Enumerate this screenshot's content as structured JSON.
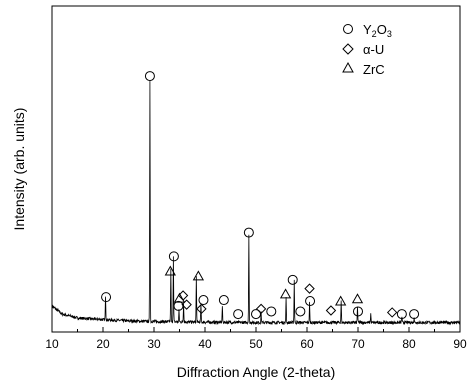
{
  "chart_data": {
    "type": "line",
    "title": "",
    "xlabel": "Diffraction Angle (2-theta)",
    "ylabel": "Intensity (arb. units)",
    "xlim": [
      10,
      90
    ],
    "ylim": [
      0,
      100
    ],
    "x_ticks": [
      "10",
      "20",
      "30",
      "40",
      "50",
      "60",
      "70",
      "80",
      "90"
    ],
    "grid": false,
    "legend_position": "top-right",
    "legend": [
      {
        "marker": "circle",
        "label_main": "Y",
        "label_sub1": "2",
        "label_mid": "O",
        "label_sub2": "3"
      },
      {
        "marker": "diamond",
        "label": "α-U"
      },
      {
        "marker": "triangle",
        "label": "ZrC"
      }
    ],
    "series": [
      {
        "baseline": [
          [
            10,
            8.0
          ],
          [
            12,
            5.5
          ],
          [
            15,
            4.3
          ],
          [
            20,
            3.8
          ],
          [
            25,
            3.4
          ],
          [
            30,
            3.2
          ],
          [
            40,
            3.0
          ],
          [
            50,
            2.9
          ],
          [
            60,
            2.9
          ],
          [
            70,
            2.9
          ],
          [
            80,
            2.9
          ],
          [
            90,
            2.9
          ]
        ],
        "peaks": [
          [
            20.5,
            7.5
          ],
          [
            29.2,
            74.0
          ],
          [
            33.3,
            16.0
          ],
          [
            33.8,
            20.0
          ],
          [
            34.9,
            3.5
          ],
          [
            35.8,
            5.8
          ],
          [
            38.3,
            14.0
          ],
          [
            39.2,
            5.5
          ],
          [
            43.4,
            5.0
          ],
          [
            48.6,
            27.0
          ],
          [
            51.0,
            3.0
          ],
          [
            55.9,
            7.5
          ],
          [
            57.5,
            13.0
          ],
          [
            60.5,
            6.0
          ],
          [
            66.7,
            6.5
          ],
          [
            69.9,
            5.0
          ],
          [
            72.5,
            2.8
          ],
          [
            78.6,
            1.9
          ],
          [
            81.0,
            1.8
          ]
        ]
      }
    ],
    "markers": [
      {
        "type": "circle",
        "x": 20.6,
        "y": 10.7
      },
      {
        "type": "circle",
        "x": 29.2,
        "y": 78.5
      },
      {
        "type": "circle",
        "x": 33.9,
        "y": 23.2
      },
      {
        "type": "circle",
        "x": 34.8,
        "y": 8.0
      },
      {
        "type": "circle",
        "x": 39.7,
        "y": 9.8
      },
      {
        "type": "circle",
        "x": 43.7,
        "y": 9.8
      },
      {
        "type": "circle",
        "x": 46.5,
        "y": 5.5
      },
      {
        "type": "circle",
        "x": 48.6,
        "y": 30.5
      },
      {
        "type": "circle",
        "x": 50.0,
        "y": 5.5
      },
      {
        "type": "circle",
        "x": 53.0,
        "y": 6.3
      },
      {
        "type": "circle",
        "x": 57.2,
        "y": 16.0
      },
      {
        "type": "circle",
        "x": 58.7,
        "y": 6.3
      },
      {
        "type": "circle",
        "x": 60.6,
        "y": 9.5
      },
      {
        "type": "circle",
        "x": 70.0,
        "y": 6.3
      },
      {
        "type": "circle",
        "x": 78.6,
        "y": 5.5
      },
      {
        "type": "circle",
        "x": 81.0,
        "y": 5.5
      },
      {
        "type": "diamond",
        "x": 35.7,
        "y": 11.2
      },
      {
        "type": "diamond",
        "x": 36.4,
        "y": 8.4
      },
      {
        "type": "diamond",
        "x": 39.3,
        "y": 7.1
      },
      {
        "type": "diamond",
        "x": 51.0,
        "y": 7.1
      },
      {
        "type": "diamond",
        "x": 60.5,
        "y": 13.3
      },
      {
        "type": "diamond",
        "x": 64.7,
        "y": 6.6
      },
      {
        "type": "diamond",
        "x": 76.7,
        "y": 6.0
      },
      {
        "type": "triangle",
        "x": 33.2,
        "y": 18.7
      },
      {
        "type": "triangle",
        "x": 35.0,
        "y": 10.4
      },
      {
        "type": "triangle",
        "x": 38.7,
        "y": 17.2
      },
      {
        "type": "triangle",
        "x": 55.8,
        "y": 11.7
      },
      {
        "type": "triangle",
        "x": 66.6,
        "y": 9.5
      },
      {
        "type": "triangle",
        "x": 69.9,
        "y": 10.2
      }
    ]
  }
}
